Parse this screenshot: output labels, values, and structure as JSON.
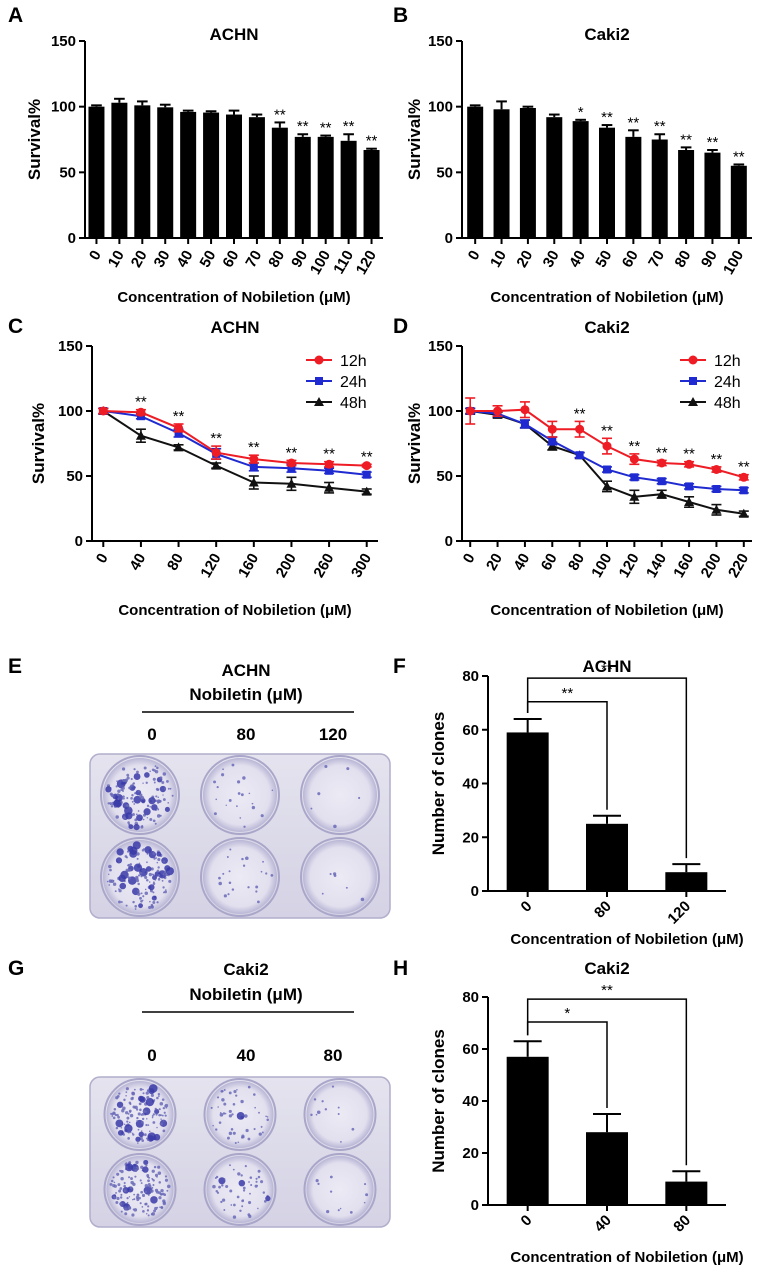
{
  "panel_letters": [
    "A",
    "B",
    "C",
    "D",
    "E",
    "F",
    "G",
    "H"
  ],
  "chart_data": [
    {
      "panel": "A",
      "type": "bar",
      "title": "ACHN",
      "xlabel": "Concentration of Nobiletion (μM)",
      "ylabel": "Survival%",
      "ylim": [
        0,
        150
      ],
      "yticks": [
        0,
        50,
        100,
        150
      ],
      "categories": [
        "0",
        "10",
        "20",
        "30",
        "40",
        "50",
        "60",
        "70",
        "80",
        "90",
        "100",
        "110",
        "120"
      ],
      "values": [
        100,
        103,
        101,
        99.5,
        96,
        95.5,
        94,
        92,
        84,
        77,
        77,
        74,
        67
      ],
      "errors": [
        1,
        3,
        3,
        2,
        1,
        1,
        3,
        2,
        4,
        2,
        1,
        5,
        1
      ],
      "significance": [
        "",
        "",
        "",
        "",
        "",
        "",
        "",
        "",
        "**",
        "**",
        "**",
        "**",
        "**"
      ]
    },
    {
      "panel": "B",
      "type": "bar",
      "title": "Caki2",
      "xlabel": "Concentration of Nobiletion (μM)",
      "ylabel": "Survival%",
      "ylim": [
        0,
        150
      ],
      "yticks": [
        0,
        50,
        100,
        150
      ],
      "categories": [
        "0",
        "10",
        "20",
        "30",
        "40",
        "50",
        "60",
        "70",
        "80",
        "90",
        "100"
      ],
      "values": [
        100,
        98,
        99,
        92,
        89,
        84,
        77,
        75,
        67,
        65,
        55
      ],
      "errors": [
        1,
        6,
        1,
        2,
        1,
        2,
        5,
        4,
        2,
        2,
        1
      ],
      "significance": [
        "",
        "",
        "",
        "",
        "*",
        "**",
        "**",
        "**",
        "**",
        "**",
        "**"
      ]
    },
    {
      "panel": "C",
      "type": "line",
      "title": "ACHN",
      "xlabel": "Concentration of Nobiletion (μM)",
      "ylabel": "Survival%",
      "ylim": [
        0,
        150
      ],
      "yticks": [
        0,
        50,
        100,
        150
      ],
      "categories": [
        "0",
        "40",
        "80",
        "120",
        "160",
        "200",
        "260",
        "300"
      ],
      "series": [
        {
          "name": "12h",
          "color": "#ee1c24",
          "marker": "circle",
          "values": [
            100,
            99,
            87,
            68,
            63,
            60,
            59,
            58
          ],
          "errors": [
            2,
            2,
            3,
            5,
            3,
            2,
            2,
            1
          ]
        },
        {
          "name": "24h",
          "color": "#1f2bd0",
          "marker": "square",
          "values": [
            100,
            96,
            83,
            67,
            57,
            56,
            54,
            51
          ],
          "errors": [
            2,
            2,
            3,
            4,
            3,
            3,
            2,
            2
          ]
        },
        {
          "name": "48h",
          "color": "#111111",
          "marker": "triangle",
          "values": [
            100,
            81,
            72,
            58,
            45,
            44,
            41,
            38
          ],
          "errors": [
            2,
            5,
            2,
            2,
            5,
            5,
            4,
            2
          ]
        }
      ],
      "significance": [
        "",
        "**",
        "**",
        "**",
        "**",
        "**",
        "**",
        "**"
      ]
    },
    {
      "panel": "D",
      "type": "line",
      "title": "Caki2",
      "xlabel": "Concentration of Nobiletion (μM)",
      "ylabel": "Survival%",
      "ylim": [
        0,
        150
      ],
      "yticks": [
        0,
        50,
        100,
        150
      ],
      "categories": [
        "0",
        "20",
        "40",
        "60",
        "80",
        "100",
        "120",
        "140",
        "160",
        "200",
        "220"
      ],
      "series": [
        {
          "name": "12h",
          "color": "#ee1c24",
          "marker": "circle",
          "values": [
            100,
            100,
            101,
            86,
            86,
            73,
            63,
            60,
            59,
            55,
            49
          ],
          "errors": [
            10,
            4,
            6,
            6,
            6,
            6,
            4,
            2,
            2,
            2,
            2
          ]
        },
        {
          "name": "24h",
          "color": "#1f2bd0",
          "marker": "square",
          "values": [
            100,
            98,
            90,
            77,
            66,
            55,
            49,
            46,
            42,
            40,
            39
          ],
          "errors": [
            2,
            2,
            3,
            3,
            2,
            2,
            2,
            2,
            2,
            2,
            2
          ]
        },
        {
          "name": "48h",
          "color": "#111111",
          "marker": "triangle",
          "values": [
            100,
            97,
            90,
            73,
            66,
            42,
            34,
            36,
            30,
            24,
            21
          ],
          "errors": [
            2,
            2,
            3,
            3,
            2,
            4,
            5,
            3,
            4,
            4,
            2
          ]
        }
      ],
      "significance": [
        "",
        "",
        "",
        "",
        "**",
        "**",
        "**",
        "**",
        "**",
        "**",
        "**"
      ]
    },
    {
      "panel": "F",
      "type": "bar",
      "title": "ACHN",
      "xlabel": "Concentration of Nobiletion (μM)",
      "ylabel": "Number of clones",
      "ylim": [
        0,
        80
      ],
      "yticks": [
        0,
        20,
        40,
        60,
        80
      ],
      "categories": [
        "0",
        "80",
        "120"
      ],
      "values": [
        59,
        25,
        7
      ],
      "errors": [
        5,
        3,
        3
      ],
      "comparisons": [
        {
          "from": 0,
          "to": 1,
          "label": "**"
        },
        {
          "from": 0,
          "to": 2,
          "label": "**"
        }
      ]
    },
    {
      "panel": "H",
      "type": "bar",
      "title": "Caki2",
      "xlabel": "Concentration of Nobiletion (μM)",
      "ylabel": "Number of clones",
      "ylim": [
        0,
        80
      ],
      "yticks": [
        0,
        20,
        40,
        60,
        80
      ],
      "categories": [
        "0",
        "40",
        "80"
      ],
      "values": [
        57,
        28,
        9
      ],
      "errors": [
        6,
        7,
        4
      ],
      "comparisons": [
        {
          "from": 0,
          "to": 1,
          "label": "*"
        },
        {
          "from": 0,
          "to": 2,
          "label": "**"
        }
      ]
    }
  ],
  "plates": [
    {
      "panel": "E",
      "cell_line": "ACHN",
      "treatment": "Nobiletin (μM)",
      "doses": [
        "0",
        "80",
        "120"
      ],
      "colony_density": [
        1.0,
        0.15,
        0.04
      ]
    },
    {
      "panel": "G",
      "cell_line": "Caki2",
      "treatment": "Nobiletin (μM)",
      "doses": [
        "0",
        "40",
        "80"
      ],
      "colony_density": [
        1.0,
        0.35,
        0.08
      ]
    }
  ]
}
